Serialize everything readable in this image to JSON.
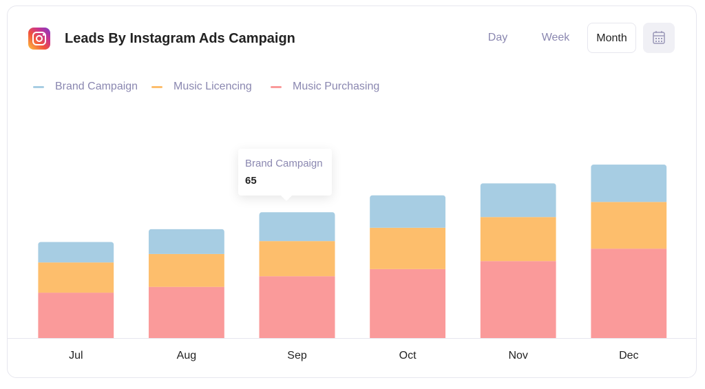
{
  "header": {
    "title": "Leads By Instagram Ads Campaign",
    "tabs": [
      "Day",
      "Week",
      "Month"
    ],
    "active_tab": "Month"
  },
  "tooltip": {
    "label": "Brand Campaign",
    "value": "65"
  },
  "chart_data": {
    "type": "bar",
    "stacked": true,
    "title": "Leads By Instagram Ads Campaign",
    "categories": [
      "Jul",
      "Aug",
      "Sep",
      "Oct",
      "Nov",
      "Dec"
    ],
    "series": [
      {
        "name": "Music Purchasing",
        "color": "#fa9a9a",
        "values": [
          102,
          115,
          139,
          155,
          173,
          201
        ]
      },
      {
        "name": "Music Licencing",
        "color": "#fdbe6c",
        "values": [
          68,
          74,
          79,
          93,
          99,
          105
        ]
      },
      {
        "name": "Brand Campaign",
        "color": "#a7cde3",
        "values": [
          46,
          56,
          65,
          73,
          76,
          84
        ]
      }
    ],
    "legend_order": [
      "Brand Campaign",
      "Music Licencing",
      "Music Purchasing"
    ],
    "legend_position": "top-left",
    "ylim": [
      0,
      500
    ],
    "grid": false,
    "xlabel": "",
    "ylabel": ""
  }
}
